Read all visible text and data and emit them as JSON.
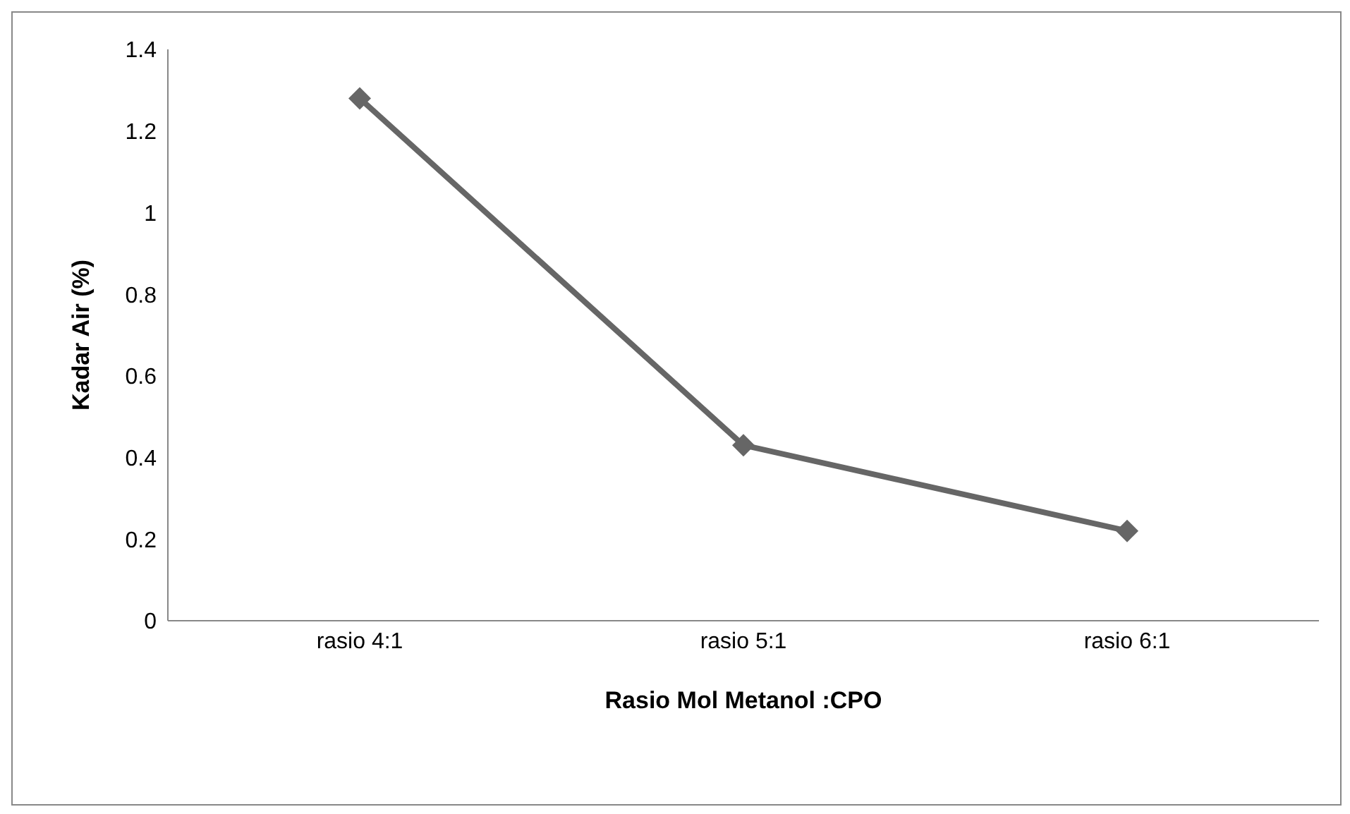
{
  "chart_data": {
    "type": "line",
    "xlabel": "Rasio Mol Metanol :CPO",
    "ylabel": "Kadar Air (%)",
    "categories": [
      "rasio 4:1",
      "rasio 5:1",
      "rasio 6:1"
    ],
    "series": [
      {
        "color": "#666666",
        "values": [
          1.28,
          0.43,
          0.22
        ]
      }
    ],
    "ylim": [
      0,
      1.4
    ],
    "yticks": [
      0,
      0.2,
      0.4,
      0.6,
      0.8,
      1,
      1.2,
      1.4
    ],
    "grid": false,
    "legend": false,
    "marker": "diamond",
    "line_style": "solid"
  }
}
